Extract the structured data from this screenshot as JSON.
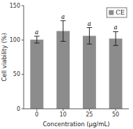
{
  "chart_data": {
    "type": "bar",
    "categories": [
      "0",
      "10",
      "25",
      "50"
    ],
    "series": [
      {
        "name": "CE",
        "color": "#8c8c8c",
        "values": [
          100.5,
          113.0,
          106.0,
          102.0
        ],
        "errors": [
          5.0,
          15.0,
          12.0,
          10.0
        ]
      }
    ],
    "annotations": [
      "a",
      "a",
      "a",
      "a"
    ],
    "xlabel": "Concentration (μg/mL)",
    "ylabel": "Cell viability (%)",
    "ylim": [
      0,
      150
    ],
    "yticks": [
      0,
      50,
      100,
      150
    ],
    "legend": "upper right"
  }
}
